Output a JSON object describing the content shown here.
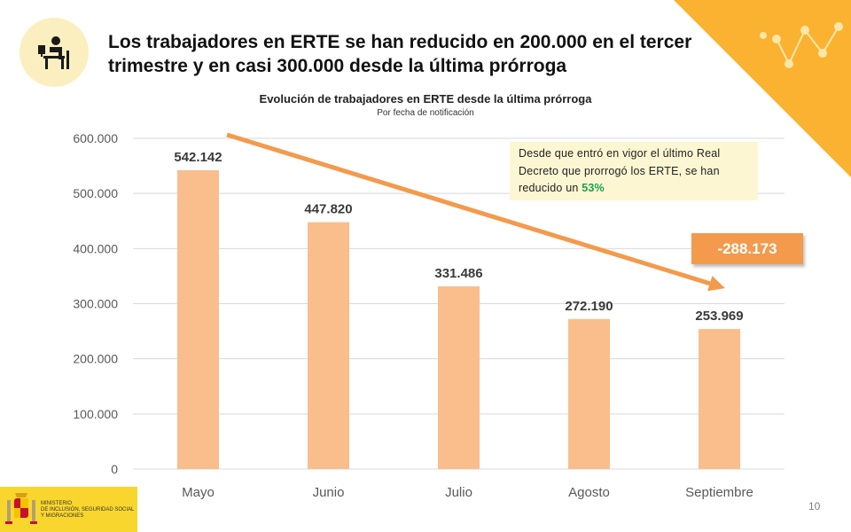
{
  "slide": {
    "headline": "Los trabajadores en ERTE se han reducido en 200.000 en el tercer trimestre y en casi 300.000 desde la última prórroga",
    "page_number": "10",
    "icon": "worker-at-desk-icon",
    "accent_color": "#fbb231"
  },
  "logo": {
    "lines": [
      "MINISTERIO",
      "DE INCLUSIÓN, SEGURIDAD SOCIAL",
      "Y MIGRACIONES"
    ],
    "icon": "spain-coat-of-arms-icon",
    "bar_color": "#f9d62d"
  },
  "callout": {
    "text": "Desde que entró en vigor el último Real Decreto que prorrogó los ERTE, se han reducido un",
    "highlight": "53%"
  },
  "delta_badge": "-288.173",
  "chart_data": {
    "type": "bar",
    "title": "Evolución de trabajadores en ERTE desde la última prórroga",
    "subtitle": "Por fecha de notificación",
    "categories": [
      "Mayo",
      "Junio",
      "Julio",
      "Agosto",
      "Septiembre"
    ],
    "values": [
      542142,
      447820,
      331486,
      272190,
      253969
    ],
    "data_labels": [
      "542.142",
      "447.820",
      "331.486",
      "272.190",
      "253.969"
    ],
    "y_ticks": [
      0,
      100000,
      200000,
      300000,
      400000,
      500000,
      600000
    ],
    "y_tick_labels": [
      "0",
      "100.000",
      "200.000",
      "300.000",
      "400.000",
      "500.000",
      "600.000"
    ],
    "ylim": [
      0,
      600000
    ],
    "grid": true,
    "bar_color": "#f9be8c",
    "trend_arrow_color": "#f39a4c"
  }
}
